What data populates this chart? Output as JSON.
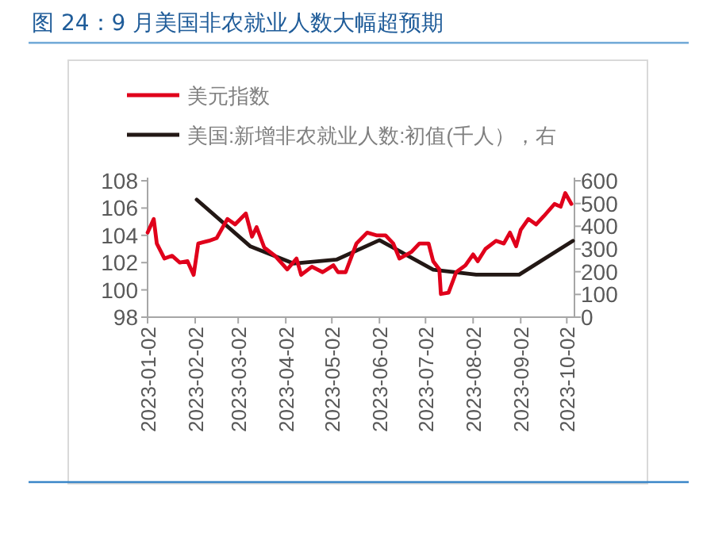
{
  "chart_data": {
    "type": "line",
    "title": "图 24：9 月美国非农就业人数大幅超预期",
    "xlim": [
      "2023-01-02",
      "2023-10-07"
    ],
    "xticks": [
      "2023-01-02",
      "2023-02-02",
      "2023-03-02",
      "2023-04-02",
      "2023-05-02",
      "2023-06-02",
      "2023-07-02",
      "2023-08-02",
      "2023-09-02",
      "2023-10-02"
    ],
    "ylim": [
      98,
      108
    ],
    "yticks": [
      98,
      100,
      102,
      104,
      106,
      108
    ],
    "y2lim": [
      0,
      600
    ],
    "y2ticks": [
      0,
      100,
      200,
      300,
      400,
      500,
      600
    ],
    "legend": "top left",
    "grid": false,
    "marker": "none",
    "line_style": "solid",
    "series": [
      {
        "name": "美元指数",
        "color": "#e0001b",
        "x": [
          "2023-01-02",
          "2023-01-06",
          "2023-01-08",
          "2023-01-13",
          "2023-01-18",
          "2023-01-23",
          "2023-01-28",
          "2023-02-01",
          "2023-02-04",
          "2023-02-11",
          "2023-02-16",
          "2023-02-23",
          "2023-02-28",
          "2023-03-07",
          "2023-03-11",
          "2023-03-14",
          "2023-03-19",
          "2023-03-26",
          "2023-04-03",
          "2023-04-09",
          "2023-04-12",
          "2023-04-19",
          "2023-04-26",
          "2023-05-03",
          "2023-05-06",
          "2023-05-11",
          "2023-05-15",
          "2023-05-18",
          "2023-05-25",
          "2023-05-31",
          "2023-06-06",
          "2023-06-11",
          "2023-06-15",
          "2023-06-20",
          "2023-06-23",
          "2023-06-28",
          "2023-07-04",
          "2023-07-07",
          "2023-07-11",
          "2023-07-12",
          "2023-07-17",
          "2023-07-22",
          "2023-07-28",
          "2023-08-02",
          "2023-08-05",
          "2023-08-10",
          "2023-08-17",
          "2023-08-22",
          "2023-08-26",
          "2023-08-30",
          "2023-09-02",
          "2023-09-07",
          "2023-09-12",
          "2023-09-17",
          "2023-09-24",
          "2023-09-28",
          "2023-10-01",
          "2023-10-05"
        ],
        "values": [
          104.2,
          105.2,
          103.4,
          102.3,
          102.5,
          102.0,
          102.1,
          101.1,
          103.4,
          103.6,
          103.8,
          105.2,
          104.8,
          105.6,
          103.9,
          104.6,
          103.1,
          102.5,
          101.5,
          102.3,
          101.1,
          101.7,
          101.3,
          101.8,
          101.3,
          101.3,
          102.5,
          103.4,
          104.2,
          104.0,
          104.0,
          103.4,
          102.3,
          102.6,
          102.8,
          103.4,
          103.4,
          102.1,
          101.5,
          99.7,
          99.8,
          101.3,
          101.8,
          102.6,
          102.1,
          103.0,
          103.6,
          103.4,
          104.2,
          103.2,
          104.4,
          105.2,
          104.8,
          105.4,
          106.3,
          106.1,
          107.1,
          106.3
        ]
      },
      {
        "name": "美国:新增非农就业人数:初值(千人），右",
        "color": "#231815",
        "axis": "y2",
        "x": [
          "2023-02-03",
          "2023-03-10",
          "2023-04-07",
          "2023-05-05",
          "2023-06-02",
          "2023-07-07",
          "2023-08-04",
          "2023-09-01",
          "2023-10-06"
        ],
        "values": [
          517,
          311,
          236,
          253,
          339,
          209,
          187,
          187,
          336
        ]
      }
    ]
  }
}
